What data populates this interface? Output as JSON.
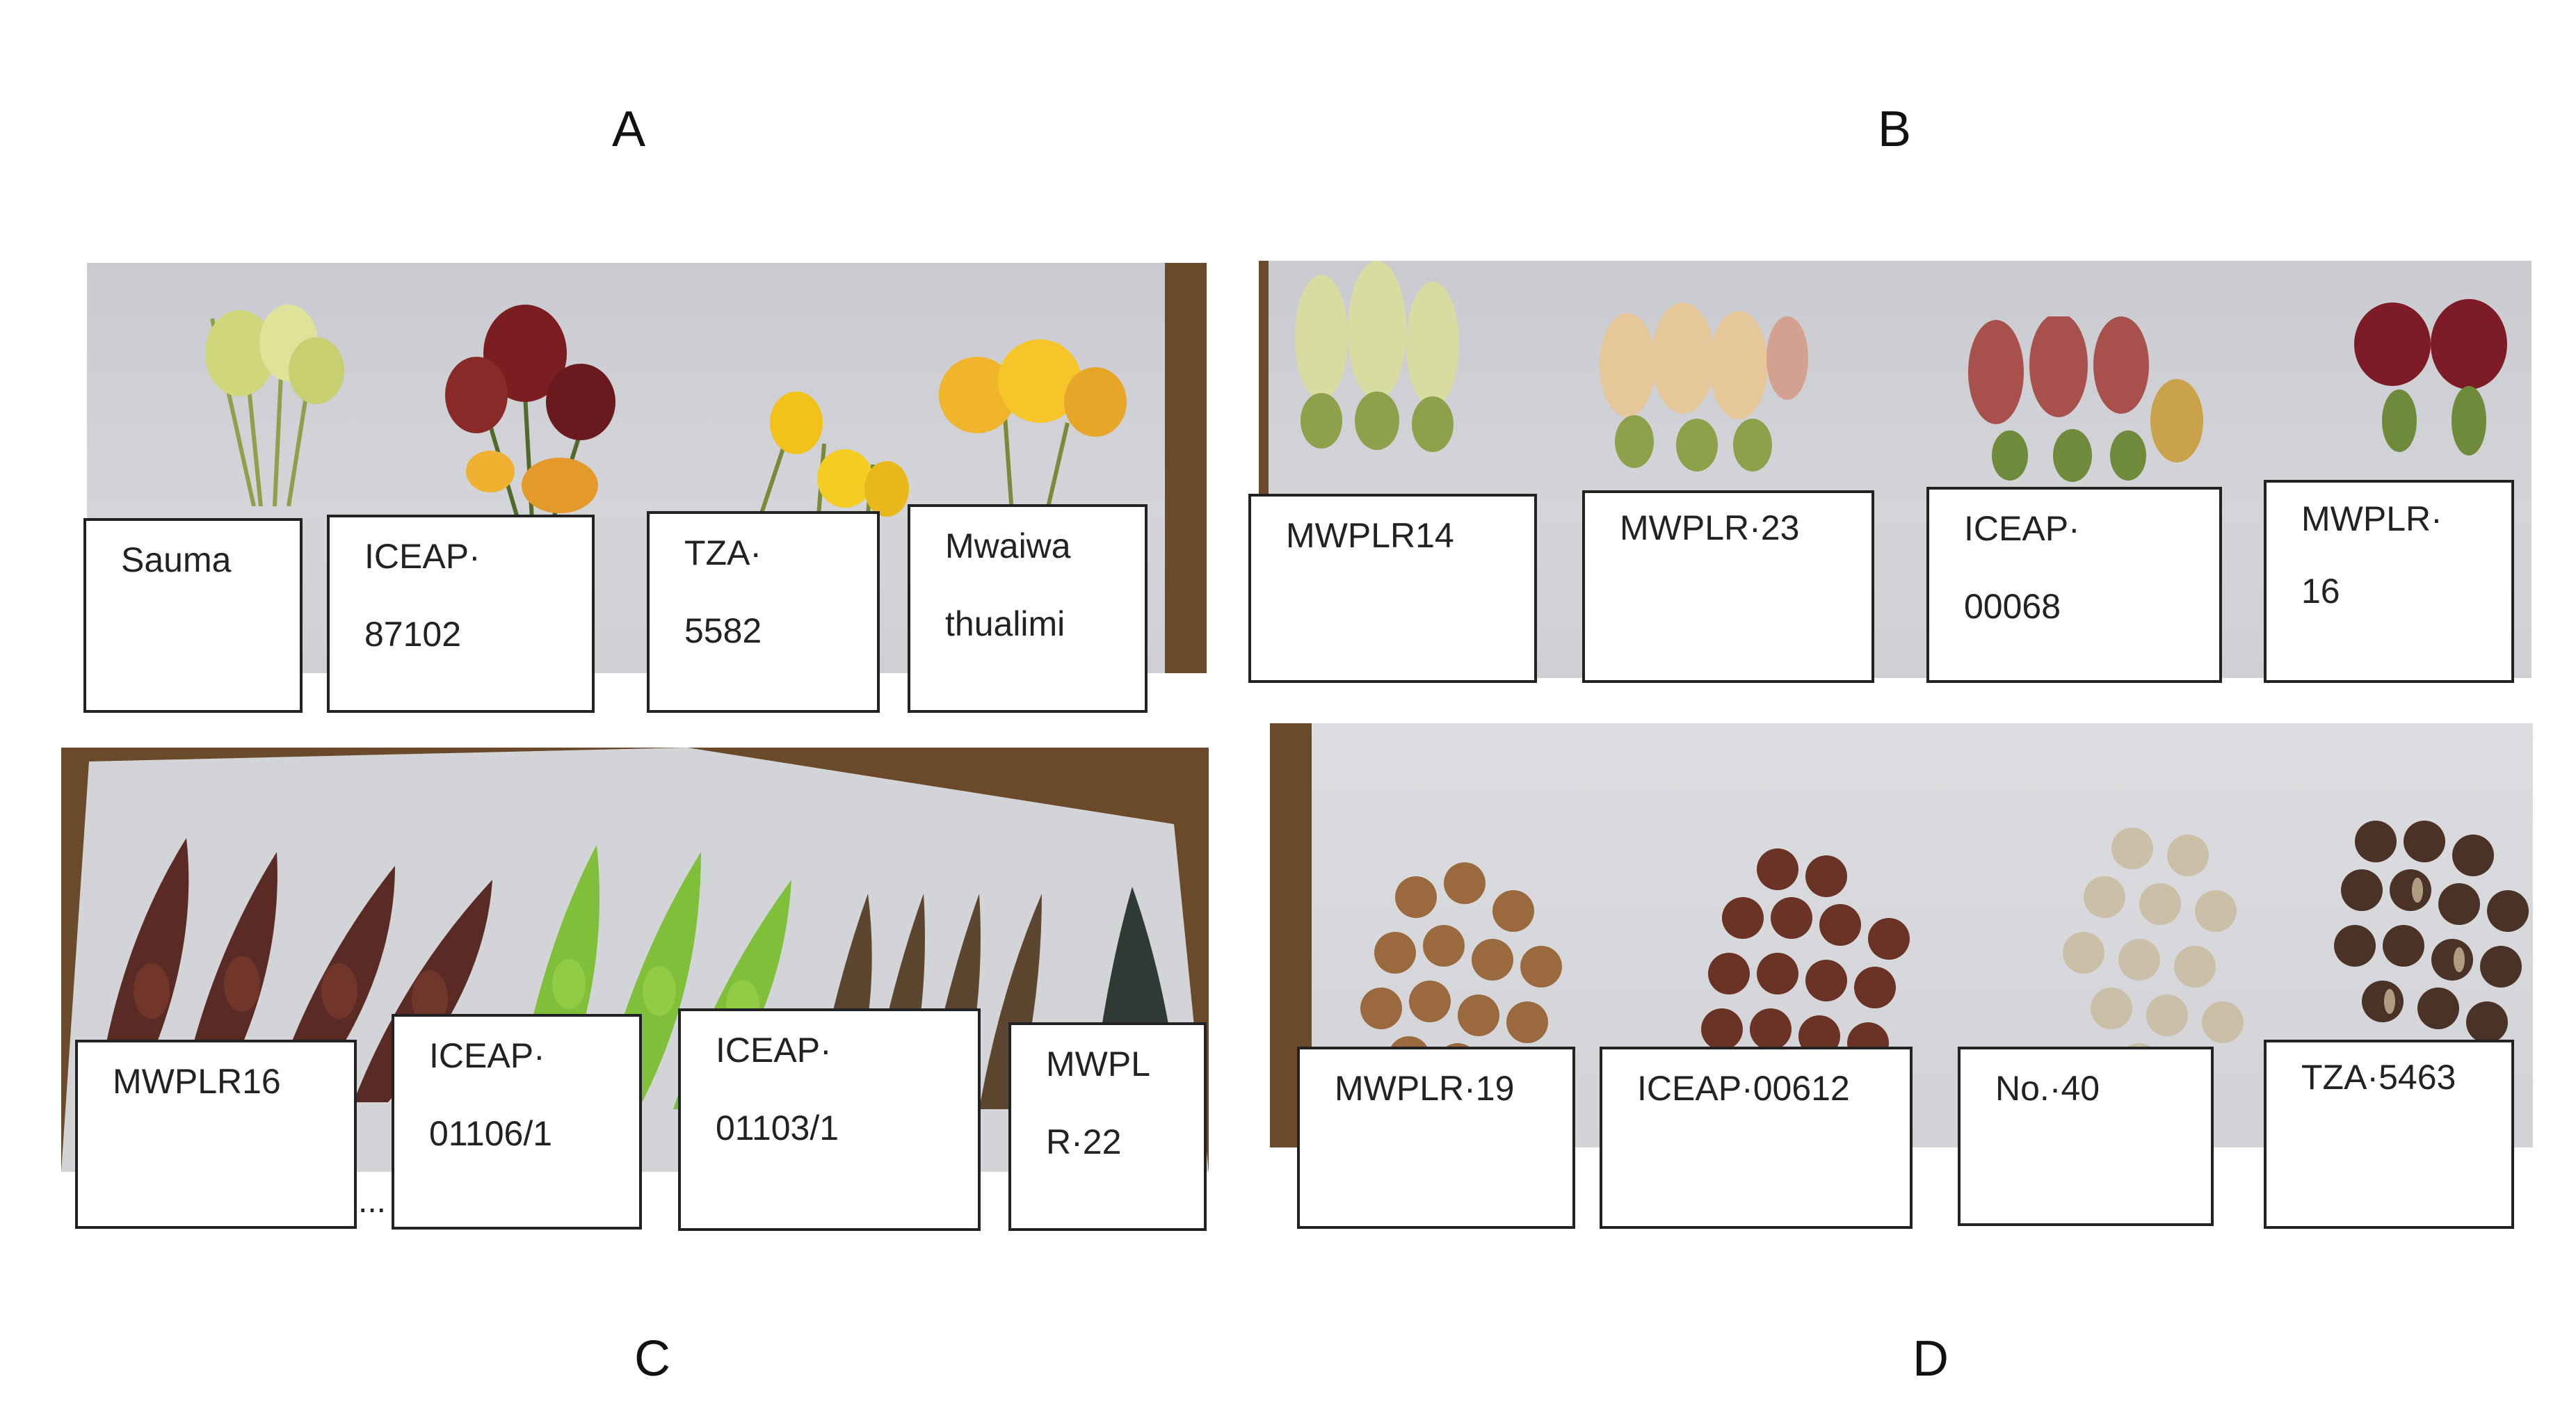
{
  "panels": {
    "a": {
      "letter": "A",
      "labels": [
        {
          "line1": "Sauma",
          "line2": ""
        },
        {
          "line1": "ICEAP·",
          "line2": "87102"
        },
        {
          "line1": "TZA·",
          "line2": "5582"
        },
        {
          "line1": "Mwaiwa",
          "line2": "thualimi"
        }
      ]
    },
    "b": {
      "letter": "B",
      "labels": [
        {
          "line1": "MWPLR14",
          "line2": ""
        },
        {
          "line1": "MWPLR·23",
          "line2": ""
        },
        {
          "line1": "ICEAP·",
          "line2": "00068"
        },
        {
          "line1": "MWPLR·",
          "line2": "16"
        }
      ]
    },
    "c": {
      "letter": "C",
      "labels": [
        {
          "line1": "MWPLR16",
          "line2": ""
        },
        {
          "line1": "ICEAP·",
          "line2": "01106/1"
        },
        {
          "line1": "ICEAP·",
          "line2": "01103/1"
        },
        {
          "line1": "MWPL",
          "line2": "R·22"
        }
      ],
      "ellipsis": "..."
    },
    "d": {
      "letter": "D",
      "labels": [
        {
          "line1": "MWPLR·19",
          "line2": ""
        },
        {
          "line1": "ICEAP·00612",
          "line2": ""
        },
        {
          "line1": "No.·40",
          "line2": ""
        },
        {
          "line1": "TZA·5463",
          "line2": ""
        }
      ]
    }
  },
  "colors": {
    "flower_a1": "#cfd77a",
    "flower_a2": "#7a1e22",
    "flower_a3": "#f2c21a",
    "flower_a4": "#f0b52a",
    "flower_b1": "#d8dca0",
    "flower_b2": "#e6c79a",
    "flower_b3": "#a8514c",
    "flower_b4": "#7d1c26",
    "pod_c1": "#5a2a24",
    "pod_c2": "#7fbf3a",
    "pod_c3": "#5d4630",
    "pod_c4": "#2f3a34",
    "seed_d1": "#9a6a3e",
    "seed_d2": "#6a3326",
    "seed_d3": "#cbbfa8",
    "seed_d4": "#4a3226"
  }
}
